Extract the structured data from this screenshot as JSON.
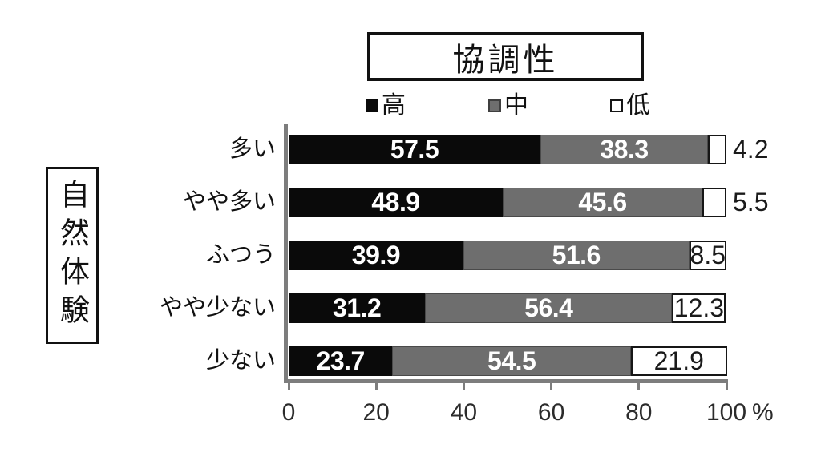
{
  "title": "協調性",
  "side_label": "自然体験",
  "colors": {
    "high": "#0a0a0a",
    "mid": "#6e6e6e",
    "low": "#ffffff",
    "low_border": "#161616",
    "axis": "#7d7d7d",
    "text": "#111111"
  },
  "legend": {
    "items": [
      {
        "label": "高",
        "key": "high"
      },
      {
        "label": "中",
        "key": "mid"
      },
      {
        "label": "低",
        "key": "low"
      }
    ]
  },
  "x_axis": {
    "ticks": [
      0,
      20,
      40,
      60,
      80,
      100
    ],
    "unit": "%"
  },
  "chart_data": {
    "type": "bar",
    "orientation": "horizontal",
    "stacked": true,
    "title": "協調性",
    "ylabel": "自然体験",
    "xlabel": "%",
    "xlim": [
      0,
      100
    ],
    "grid": false,
    "legend_position": "top",
    "categories": [
      "多い",
      "やや多い",
      "ふつう",
      "やや少ない",
      "少ない"
    ],
    "series": [
      {
        "name": "高",
        "color": "#0a0a0a",
        "values": [
          57.5,
          48.9,
          39.9,
          31.2,
          23.7
        ]
      },
      {
        "name": "中",
        "color": "#6e6e6e",
        "values": [
          38.3,
          45.6,
          51.6,
          56.4,
          54.5
        ]
      },
      {
        "name": "低",
        "color": "#ffffff",
        "values": [
          4.2,
          5.5,
          8.5,
          12.3,
          21.9
        ]
      }
    ]
  }
}
